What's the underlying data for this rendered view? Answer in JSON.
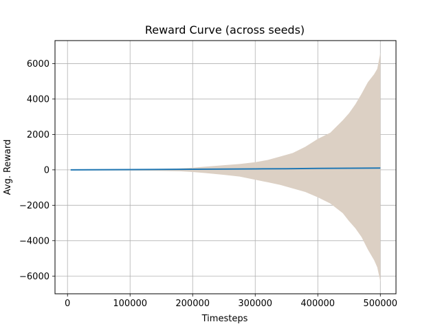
{
  "chart_data": {
    "type": "line",
    "title": "Reward Curve (across seeds)",
    "xlabel": "Timesteps",
    "ylabel": "Avg. Reward",
    "xlim": [
      -20000,
      525000
    ],
    "ylim": [
      -7000,
      7300
    ],
    "xticks": [
      0,
      100000,
      200000,
      300000,
      400000,
      500000
    ],
    "xtick_labels": [
      "0",
      "100000",
      "200000",
      "300000",
      "400000",
      "500000"
    ],
    "yticks": [
      -6000,
      -4000,
      -2000,
      0,
      2000,
      4000,
      6000
    ],
    "ytick_labels": [
      "−6000",
      "−4000",
      "−2000",
      "0",
      "2000",
      "4000",
      "6000"
    ],
    "grid": true,
    "colors": {
      "mean_line": "#1f77b4",
      "band_fill": "#dcd0c4",
      "grid": "#b0b0b0"
    },
    "series": [
      {
        "x": [
          5000,
          100000,
          150000,
          200000,
          250000,
          300000,
          350000,
          400000,
          450000,
          500000
        ],
        "values": [
          0,
          15,
          25,
          35,
          45,
          55,
          65,
          80,
          90,
          100
        ]
      }
    ],
    "band": {
      "x": [
        5000,
        100000,
        150000,
        180000,
        200000,
        220000,
        250000,
        275000,
        300000,
        320000,
        340000,
        360000,
        380000,
        400000,
        420000,
        440000,
        450000,
        460000,
        470000,
        480000,
        490000,
        495000,
        500000
      ],
      "upper": [
        30,
        40,
        60,
        80,
        120,
        180,
        260,
        330,
        430,
        560,
        750,
        950,
        1300,
        1750,
        2100,
        2800,
        3200,
        3700,
        4300,
        4950,
        5400,
        5700,
        6600
      ],
      "lower": [
        -30,
        -40,
        -60,
        -80,
        -120,
        -180,
        -280,
        -380,
        -560,
        -700,
        -850,
        -1050,
        -1250,
        -1550,
        -1900,
        -2450,
        -2900,
        -3300,
        -3800,
        -4500,
        -5100,
        -5500,
        -6300
      ]
    }
  }
}
